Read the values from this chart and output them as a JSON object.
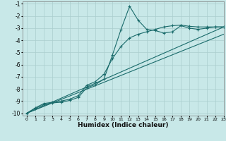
{
  "xlabel": "Humidex (Indice chaleur)",
  "xlim": [
    -0.5,
    23
  ],
  "ylim": [
    -10.2,
    -0.8
  ],
  "xticks": [
    0,
    1,
    2,
    3,
    4,
    5,
    6,
    7,
    8,
    9,
    10,
    11,
    12,
    13,
    14,
    15,
    16,
    17,
    18,
    19,
    20,
    21,
    22,
    23
  ],
  "yticks": [
    -10,
    -9,
    -8,
    -7,
    -6,
    -5,
    -4,
    -3,
    -2,
    -1
  ],
  "bg_color": "#c8e8e8",
  "line_color": "#1a6b6b",
  "grid_color": "#aacece",
  "line1_x": [
    0,
    1,
    2,
    3,
    4,
    5,
    6,
    7,
    8,
    9,
    10,
    11,
    12,
    13,
    14,
    15,
    16,
    17,
    18,
    19,
    20,
    21,
    22,
    23
  ],
  "line1_y": [
    -10.0,
    -9.6,
    -9.3,
    -9.15,
    -9.1,
    -8.95,
    -8.7,
    -7.9,
    -7.65,
    -7.2,
    -5.2,
    -3.1,
    -1.2,
    -2.35,
    -3.1,
    -3.2,
    -3.4,
    -3.3,
    -2.8,
    -3.0,
    -3.1,
    -3.0,
    -2.9,
    -2.9
  ],
  "line2_x": [
    0,
    1,
    2,
    3,
    4,
    5,
    6,
    7,
    8,
    9,
    10,
    11,
    12,
    13,
    14,
    15,
    16,
    17,
    18,
    19,
    20,
    21,
    22,
    23
  ],
  "line2_y": [
    -10.0,
    -9.55,
    -9.2,
    -9.1,
    -9.0,
    -8.85,
    -8.55,
    -7.7,
    -7.4,
    -6.8,
    -5.5,
    -4.5,
    -3.8,
    -3.5,
    -3.3,
    -3.1,
    -2.9,
    -2.8,
    -2.75,
    -2.85,
    -2.9,
    -2.9,
    -2.9,
    -2.9
  ],
  "line3_x": [
    0,
    23
  ],
  "line3_y": [
    -10.0,
    -2.9
  ],
  "line4_x": [
    0,
    23
  ],
  "line4_y": [
    -10.0,
    -3.5
  ]
}
